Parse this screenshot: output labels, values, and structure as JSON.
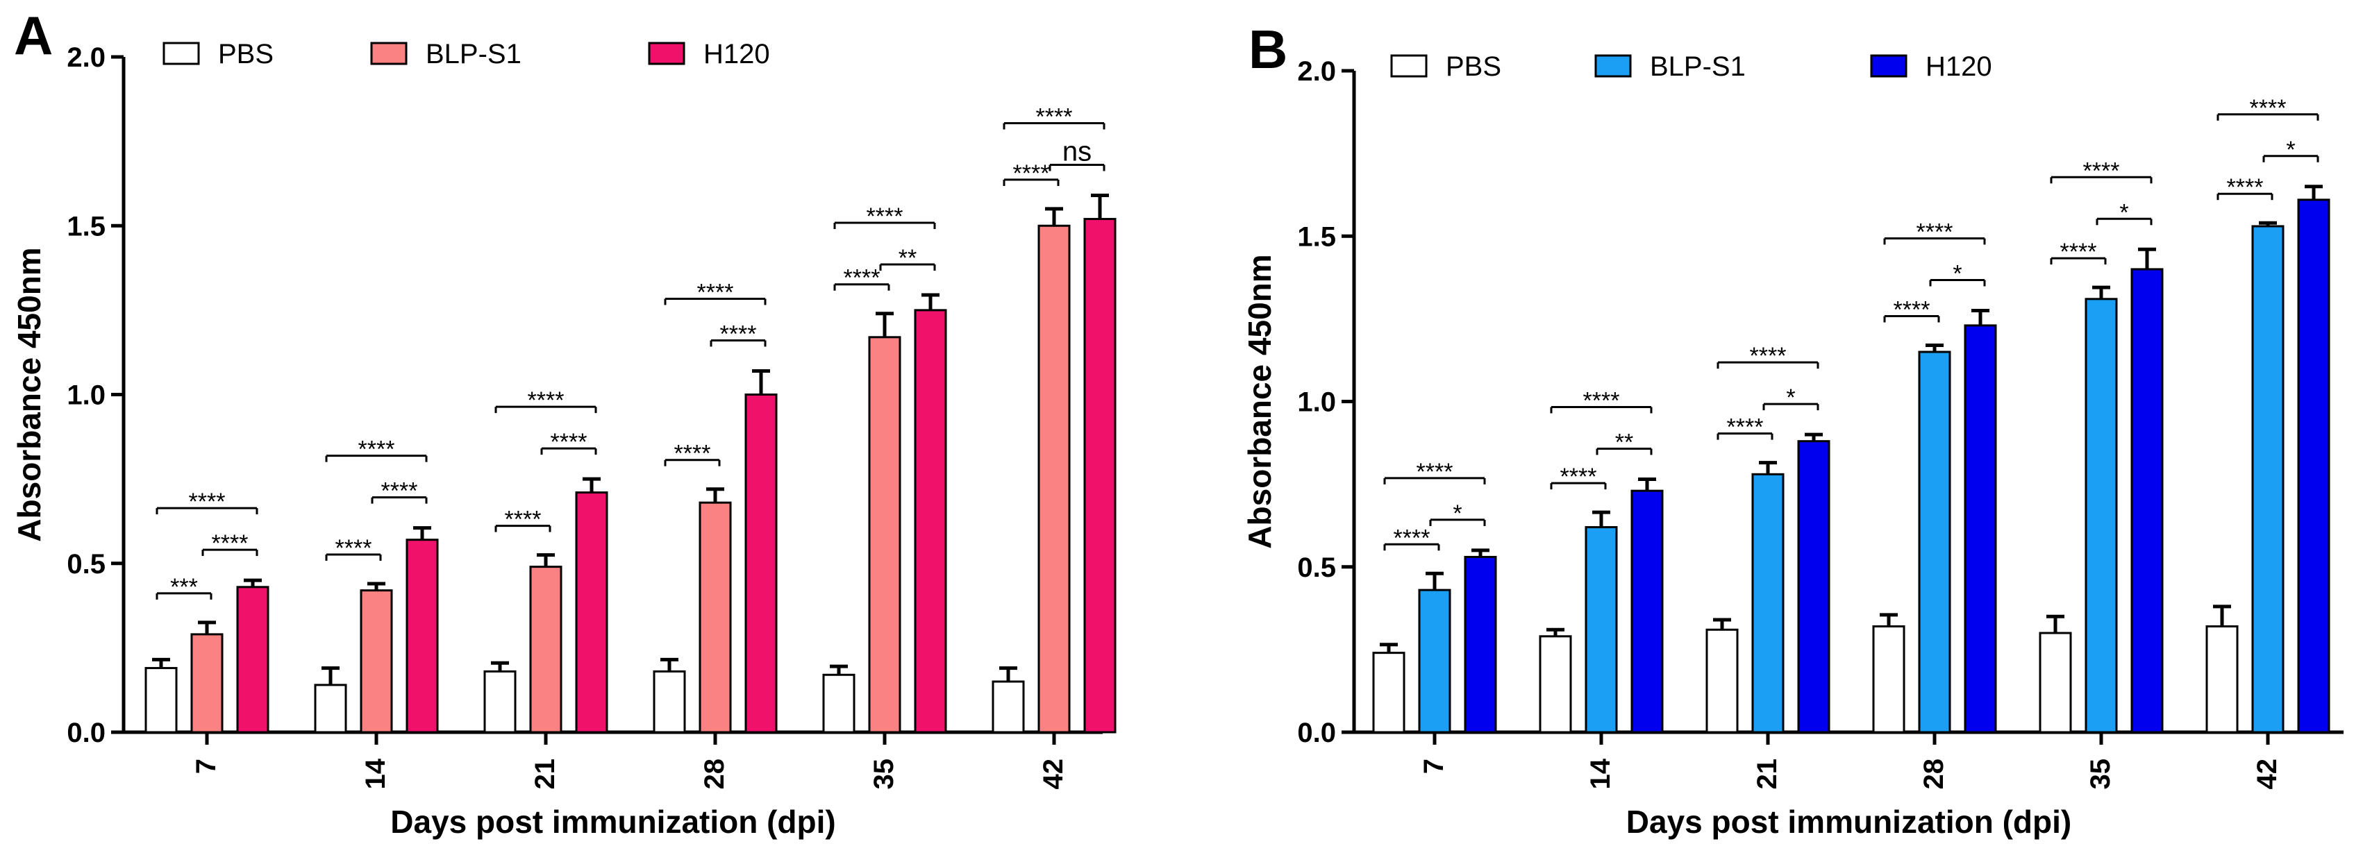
{
  "panels_meta": [
    {
      "letter": "A",
      "legend": [
        "PBS",
        "BLP-S1",
        "H120"
      ]
    },
    {
      "letter": "B",
      "legend": [
        "PBS",
        "BLP-S1",
        "H120"
      ]
    }
  ],
  "chart_data": [
    {
      "panel": "A",
      "type": "bar",
      "title": "",
      "xlabel": "Days post immunization (dpi)",
      "ylabel": "Absorbance 450nm",
      "ylim": [
        0,
        2.0
      ],
      "yticks": [
        "0.0",
        "0.5",
        "1.0",
        "1.5",
        "2.0"
      ],
      "categories": [
        "7",
        "14",
        "21",
        "28",
        "35",
        "42"
      ],
      "legend_position": "top",
      "series": [
        {
          "name": "PBS",
          "color": "#ffffff",
          "values": [
            0.19,
            0.14,
            0.18,
            0.18,
            0.17,
            0.15
          ],
          "errors": [
            0.025,
            0.05,
            0.025,
            0.035,
            0.025,
            0.04
          ]
        },
        {
          "name": "BLP-S1",
          "color": "#fa8282",
          "values": [
            0.29,
            0.42,
            0.49,
            0.68,
            1.17,
            1.5
          ],
          "errors": [
            0.035,
            0.02,
            0.035,
            0.04,
            0.07,
            0.05
          ]
        },
        {
          "name": "H120",
          "color": "#f0116a",
          "values": [
            0.43,
            0.57,
            0.71,
            1.0,
            1.25,
            1.52
          ],
          "errors": [
            0.02,
            0.035,
            0.04,
            0.07,
            0.045,
            0.07
          ]
        }
      ],
      "significance": [
        {
          "category": "7",
          "pairs": [
            {
              "from": "PBS",
              "to": "BLP-S1",
              "label": "***"
            },
            {
              "from": "BLP-S1",
              "to": "H120",
              "label": "****"
            },
            {
              "from": "PBS",
              "to": "H120",
              "label": "****"
            }
          ]
        },
        {
          "category": "14",
          "pairs": [
            {
              "from": "PBS",
              "to": "BLP-S1",
              "label": "****"
            },
            {
              "from": "BLP-S1",
              "to": "H120",
              "label": "****"
            },
            {
              "from": "PBS",
              "to": "H120",
              "label": "****"
            }
          ]
        },
        {
          "category": "21",
          "pairs": [
            {
              "from": "PBS",
              "to": "BLP-S1",
              "label": "****"
            },
            {
              "from": "BLP-S1",
              "to": "H120",
              "label": "****"
            },
            {
              "from": "PBS",
              "to": "H120",
              "label": "****"
            }
          ]
        },
        {
          "category": "28",
          "pairs": [
            {
              "from": "PBS",
              "to": "BLP-S1",
              "label": "****"
            },
            {
              "from": "BLP-S1",
              "to": "H120",
              "label": "****"
            },
            {
              "from": "PBS",
              "to": "H120",
              "label": "****"
            }
          ]
        },
        {
          "category": "35",
          "pairs": [
            {
              "from": "PBS",
              "to": "BLP-S1",
              "label": "****"
            },
            {
              "from": "BLP-S1",
              "to": "H120",
              "label": "**"
            },
            {
              "from": "PBS",
              "to": "H120",
              "label": "****"
            }
          ]
        },
        {
          "category": "42",
          "pairs": [
            {
              "from": "PBS",
              "to": "BLP-S1",
              "label": "****"
            },
            {
              "from": "BLP-S1",
              "to": "H120",
              "label": "ns"
            },
            {
              "from": "PBS",
              "to": "H120",
              "label": "****"
            }
          ]
        }
      ]
    },
    {
      "panel": "B",
      "type": "bar",
      "title": "",
      "xlabel": "Days post immunization (dpi)",
      "ylabel": "Absorbance 450nm",
      "ylim": [
        0,
        2.0
      ],
      "yticks": [
        "0.0",
        "0.5",
        "1.0",
        "1.5",
        "2.0"
      ],
      "categories": [
        "7",
        "14",
        "21",
        "28",
        "35",
        "42"
      ],
      "legend_position": "top",
      "series": [
        {
          "name": "PBS",
          "color": "#ffffff",
          "values": [
            0.24,
            0.29,
            0.31,
            0.32,
            0.3,
            0.32
          ],
          "errors": [
            0.025,
            0.02,
            0.03,
            0.035,
            0.05,
            0.06
          ]
        },
        {
          "name": "BLP-S1",
          "color": "#1a9ff5",
          "values": [
            0.43,
            0.62,
            0.78,
            1.15,
            1.31,
            1.53
          ],
          "errors": [
            0.05,
            0.045,
            0.035,
            0.02,
            0.035,
            0.01
          ]
        },
        {
          "name": "H120",
          "color": "#0000ee",
          "values": [
            0.53,
            0.73,
            0.88,
            1.23,
            1.4,
            1.61
          ],
          "errors": [
            0.02,
            0.035,
            0.02,
            0.045,
            0.06,
            0.04
          ]
        }
      ],
      "significance": [
        {
          "category": "7",
          "pairs": [
            {
              "from": "PBS",
              "to": "BLP-S1",
              "label": "****"
            },
            {
              "from": "BLP-S1",
              "to": "H120",
              "label": "*"
            },
            {
              "from": "PBS",
              "to": "H120",
              "label": "****"
            }
          ]
        },
        {
          "category": "14",
          "pairs": [
            {
              "from": "PBS",
              "to": "BLP-S1",
              "label": "****"
            },
            {
              "from": "BLP-S1",
              "to": "H120",
              "label": "**"
            },
            {
              "from": "PBS",
              "to": "H120",
              "label": "****"
            }
          ]
        },
        {
          "category": "21",
          "pairs": [
            {
              "from": "PBS",
              "to": "BLP-S1",
              "label": "****"
            },
            {
              "from": "BLP-S1",
              "to": "H120",
              "label": "*"
            },
            {
              "from": "PBS",
              "to": "H120",
              "label": "****"
            }
          ]
        },
        {
          "category": "28",
          "pairs": [
            {
              "from": "PBS",
              "to": "BLP-S1",
              "label": "****"
            },
            {
              "from": "BLP-S1",
              "to": "H120",
              "label": "*"
            },
            {
              "from": "PBS",
              "to": "H120",
              "label": "****"
            }
          ]
        },
        {
          "category": "35",
          "pairs": [
            {
              "from": "PBS",
              "to": "BLP-S1",
              "label": "****"
            },
            {
              "from": "BLP-S1",
              "to": "H120",
              "label": "*"
            },
            {
              "from": "PBS",
              "to": "H120",
              "label": "****"
            }
          ]
        },
        {
          "category": "42",
          "pairs": [
            {
              "from": "PBS",
              "to": "BLP-S1",
              "label": "****"
            },
            {
              "from": "BLP-S1",
              "to": "H120",
              "label": "*"
            },
            {
              "from": "PBS",
              "to": "H120",
              "label": "****"
            }
          ]
        }
      ]
    }
  ]
}
